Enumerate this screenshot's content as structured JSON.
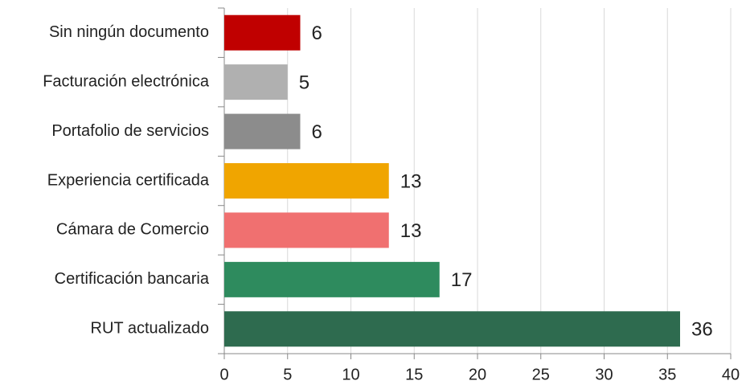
{
  "chart_data": {
    "type": "bar",
    "orientation": "horizontal",
    "categories": [
      "Sin ningún documento",
      "Facturación electrónica",
      "Portafolio de servicios",
      "Experiencia certificada",
      "Cámara de Comercio",
      "Certificación bancaria",
      "RUT actualizado"
    ],
    "values": [
      6,
      5,
      6,
      13,
      13,
      17,
      36
    ],
    "colors": [
      "#c00000",
      "#b0b0b0",
      "#8c8c8c",
      "#f0a500",
      "#f07070",
      "#2e8b5e",
      "#2e6b4f"
    ],
    "xlim": [
      0,
      40
    ],
    "xticks": [
      0,
      5,
      10,
      15,
      20,
      25,
      30,
      35,
      40
    ],
    "grid": true
  }
}
